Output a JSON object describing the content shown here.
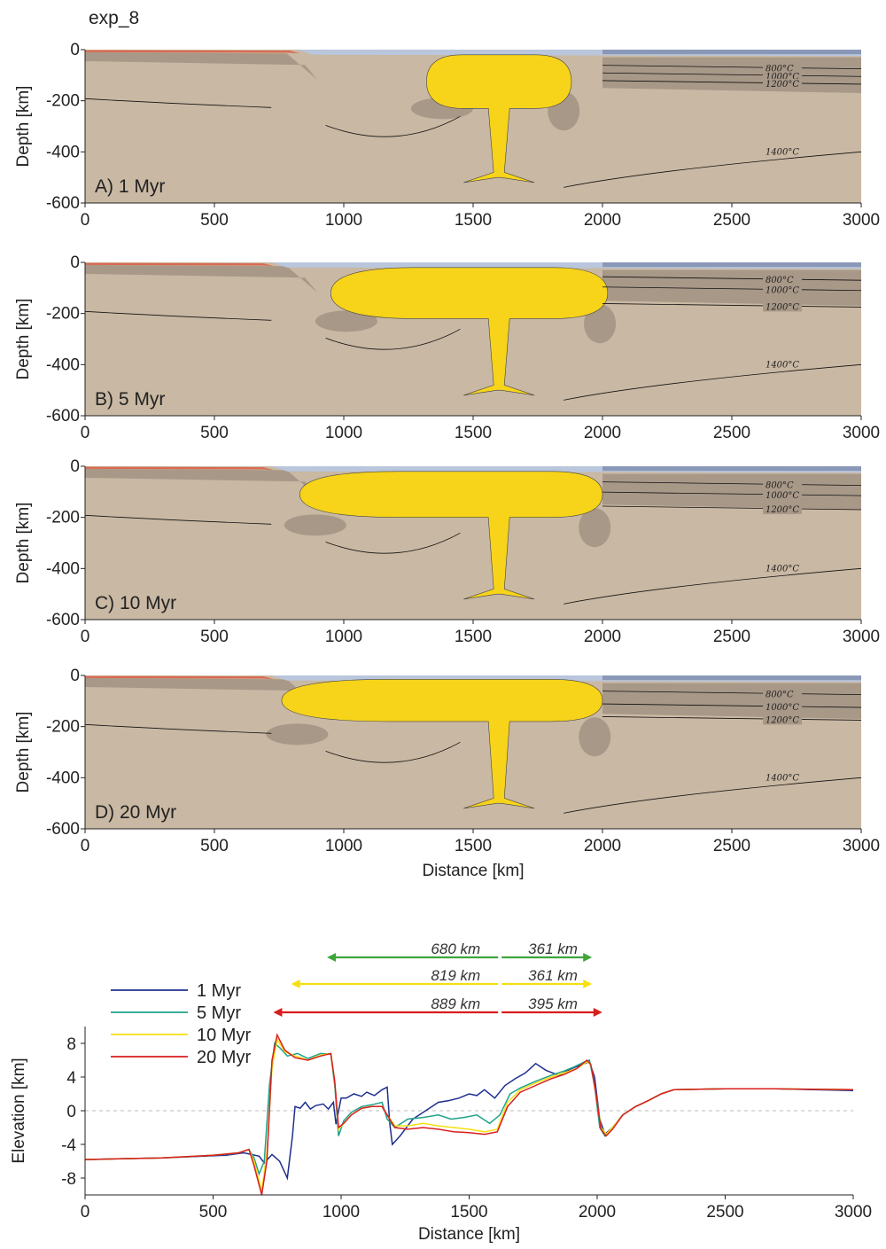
{
  "figure_title": "exp_8",
  "colors": {
    "mantle": "#c9b8a3",
    "lithosphere": "#a89888",
    "crust_light": "#b9c6dc",
    "crust_dark": "#8a98b8",
    "red_layer": "#d96a50",
    "plume": "#f7d31a",
    "isotherm": "#111111",
    "zero_line": "#bbbbbb"
  },
  "chart_data": [
    {
      "type": "area",
      "title": "",
      "panel_label": "A) 1 Myr",
      "xlabel": "",
      "ylabel": "Depth [km]",
      "xlim": [
        0,
        3000
      ],
      "ylim": [
        -600,
        0
      ],
      "xticks": [
        0,
        500,
        1000,
        1500,
        2000,
        2500,
        3000
      ],
      "yticks": [
        0,
        -200,
        -400,
        -600
      ],
      "plume_extent_km": [
        1320,
        1880
      ],
      "plume_top_depth_km": -20,
      "plume_head_depth_km": -230,
      "isotherms": [
        {
          "label": "800°C",
          "depth_km": -75
        },
        {
          "label": "1000°C",
          "depth_km": -105
        },
        {
          "label": "1200°C",
          "depth_km": -135
        },
        {
          "label": "1400°C",
          "depth_km": -400
        }
      ]
    },
    {
      "type": "area",
      "title": "",
      "panel_label": "B) 5 Myr",
      "xlabel": "",
      "ylabel": "Depth [km]",
      "xlim": [
        0,
        3000
      ],
      "ylim": [
        -600,
        0
      ],
      "xticks": [
        0,
        500,
        1000,
        1500,
        2000,
        2500,
        3000
      ],
      "yticks": [
        0,
        -200,
        -400,
        -600
      ],
      "plume_extent_km": [
        950,
        2020
      ],
      "plume_top_depth_km": -20,
      "plume_head_depth_km": -220,
      "isotherms": [
        {
          "label": "800°C",
          "depth_km": -70
        },
        {
          "label": "1000°C",
          "depth_km": -110
        },
        {
          "label": "1200°C",
          "depth_km": -175
        },
        {
          "label": "1400°C",
          "depth_km": -400
        }
      ]
    },
    {
      "type": "area",
      "title": "",
      "panel_label": "C) 10 Myr",
      "xlabel": "",
      "ylabel": "Depth [km]",
      "xlim": [
        0,
        3000
      ],
      "ylim": [
        -600,
        0
      ],
      "xticks": [
        0,
        500,
        1000,
        1500,
        2000,
        2500,
        3000
      ],
      "yticks": [
        0,
        -200,
        -400,
        -600
      ],
      "plume_extent_km": [
        830,
        2000
      ],
      "plume_top_depth_km": -20,
      "plume_head_depth_km": -200,
      "isotherms": [
        {
          "label": "800°C",
          "depth_km": -75
        },
        {
          "label": "1000°C",
          "depth_km": -115
        },
        {
          "label": "1200°C",
          "depth_km": -170
        },
        {
          "label": "1400°C",
          "depth_km": -400
        }
      ]
    },
    {
      "type": "area",
      "title": "",
      "panel_label": "D) 20 Myr",
      "xlabel": "Distance [km]",
      "ylabel": "Depth [km]",
      "xlim": [
        0,
        3000
      ],
      "ylim": [
        -600,
        0
      ],
      "xticks": [
        0,
        500,
        1000,
        1500,
        2000,
        2500,
        3000
      ],
      "yticks": [
        0,
        -200,
        -400,
        -600
      ],
      "plume_extent_km": [
        760,
        2000
      ],
      "plume_top_depth_km": -15,
      "plume_head_depth_km": -180,
      "isotherms": [
        {
          "label": "800°C",
          "depth_km": -75
        },
        {
          "label": "1000°C",
          "depth_km": -125
        },
        {
          "label": "1200°C",
          "depth_km": -175
        },
        {
          "label": "1400°C",
          "depth_km": -400
        }
      ]
    },
    {
      "type": "line",
      "title": "",
      "xlabel": "Distance [km]",
      "ylabel": "Elevation [km]",
      "xlim": [
        0,
        3000
      ],
      "ylim": [
        -10,
        10
      ],
      "xticks": [
        0,
        500,
        1000,
        1500,
        2000,
        2500,
        3000
      ],
      "yticks": [
        8,
        4,
        0,
        -4,
        -8
      ],
      "legend_position": "top-left",
      "series": [
        {
          "name": "1 Myr",
          "color": "#1f2f8f",
          "points": [
            [
              0,
              -5.8
            ],
            [
              300,
              -5.6
            ],
            [
              550,
              -5.3
            ],
            [
              620,
              -5.0
            ],
            [
              680,
              -5.4
            ],
            [
              700,
              -6.2
            ],
            [
              730,
              -5.2
            ],
            [
              760,
              -6.0
            ],
            [
              790,
              -8.0
            ],
            [
              810,
              -3.0
            ],
            [
              820,
              0.5
            ],
            [
              840,
              0.3
            ],
            [
              860,
              1.0
            ],
            [
              880,
              0.2
            ],
            [
              900,
              0.6
            ],
            [
              930,
              0.8
            ],
            [
              950,
              0.2
            ],
            [
              970,
              1.0
            ],
            [
              980,
              -1.6
            ],
            [
              1000,
              1.5
            ],
            [
              1020,
              1.5
            ],
            [
              1050,
              2.0
            ],
            [
              1080,
              1.7
            ],
            [
              1100,
              2.2
            ],
            [
              1130,
              1.8
            ],
            [
              1160,
              2.5
            ],
            [
              1180,
              2.8
            ],
            [
              1190,
              -1.5
            ],
            [
              1200,
              -4.0
            ],
            [
              1230,
              -3.0
            ],
            [
              1280,
              -1.0
            ],
            [
              1330,
              0.0
            ],
            [
              1380,
              1.0
            ],
            [
              1420,
              1.2
            ],
            [
              1460,
              1.5
            ],
            [
              1500,
              2.0
            ],
            [
              1530,
              1.8
            ],
            [
              1560,
              2.5
            ],
            [
              1600,
              1.5
            ],
            [
              1640,
              3.0
            ],
            [
              1680,
              3.8
            ],
            [
              1720,
              4.5
            ],
            [
              1760,
              5.6
            ],
            [
              1800,
              4.8
            ],
            [
              1850,
              4.2
            ],
            [
              1900,
              5.0
            ],
            [
              1940,
              5.5
            ],
            [
              1970,
              5.8
            ],
            [
              1990,
              4.0
            ],
            [
              2010,
              -1.0
            ],
            [
              2030,
              -2.8
            ],
            [
              2060,
              -2.0
            ],
            [
              2100,
              -0.5
            ],
            [
              2150,
              0.5
            ],
            [
              2200,
              1.2
            ],
            [
              2250,
              2.0
            ],
            [
              2300,
              2.5
            ],
            [
              2500,
              2.6
            ],
            [
              2700,
              2.6
            ],
            [
              3000,
              2.4
            ]
          ]
        },
        {
          "name": "5 Myr",
          "color": "#1fa38a",
          "points": [
            [
              0,
              -5.8
            ],
            [
              300,
              -5.6
            ],
            [
              500,
              -5.3
            ],
            [
              600,
              -5.0
            ],
            [
              640,
              -4.6
            ],
            [
              660,
              -5.6
            ],
            [
              680,
              -7.5
            ],
            [
              700,
              -6.0
            ],
            [
              720,
              3.0
            ],
            [
              740,
              8.0
            ],
            [
              760,
              7.5
            ],
            [
              790,
              6.5
            ],
            [
              830,
              6.8
            ],
            [
              870,
              6.2
            ],
            [
              920,
              6.8
            ],
            [
              960,
              6.7
            ],
            [
              975,
              3.0
            ],
            [
              990,
              -3.0
            ],
            [
              1010,
              -1.2
            ],
            [
              1040,
              -0.2
            ],
            [
              1080,
              0.5
            ],
            [
              1120,
              0.7
            ],
            [
              1160,
              1.0
            ],
            [
              1180,
              -1.0
            ],
            [
              1210,
              -2.0
            ],
            [
              1260,
              -1.0
            ],
            [
              1320,
              -0.8
            ],
            [
              1380,
              -0.5
            ],
            [
              1430,
              -1.0
            ],
            [
              1480,
              -0.8
            ],
            [
              1530,
              -0.5
            ],
            [
              1580,
              -1.5
            ],
            [
              1620,
              -0.5
            ],
            [
              1660,
              2.0
            ],
            [
              1700,
              2.7
            ],
            [
              1760,
              3.5
            ],
            [
              1820,
              4.2
            ],
            [
              1870,
              4.7
            ],
            [
              1910,
              5.2
            ],
            [
              1950,
              5.8
            ],
            [
              1970,
              6.0
            ],
            [
              1990,
              3.0
            ],
            [
              2010,
              -2.0
            ],
            [
              2030,
              -3.0
            ],
            [
              2060,
              -2.0
            ],
            [
              2100,
              -0.5
            ],
            [
              2150,
              0.5
            ],
            [
              2200,
              1.2
            ],
            [
              2250,
              2.0
            ],
            [
              2300,
              2.5
            ],
            [
              2500,
              2.6
            ],
            [
              2700,
              2.6
            ],
            [
              3000,
              2.5
            ]
          ]
        },
        {
          "name": "10 Myr",
          "color": "#f5e011",
          "points": [
            [
              0,
              -5.8
            ],
            [
              300,
              -5.6
            ],
            [
              500,
              -5.3
            ],
            [
              600,
              -5.0
            ],
            [
              640,
              -4.6
            ],
            [
              660,
              -6.0
            ],
            [
              690,
              -9.5
            ],
            [
              710,
              -5.0
            ],
            [
              730,
              5.0
            ],
            [
              750,
              8.5
            ],
            [
              780,
              7.0
            ],
            [
              820,
              6.5
            ],
            [
              870,
              6.0
            ],
            [
              920,
              6.6
            ],
            [
              960,
              6.8
            ],
            [
              975,
              3.5
            ],
            [
              990,
              -2.2
            ],
            [
              1010,
              -1.5
            ],
            [
              1040,
              -0.5
            ],
            [
              1080,
              0.3
            ],
            [
              1120,
              0.5
            ],
            [
              1160,
              0.5
            ],
            [
              1180,
              -0.5
            ],
            [
              1210,
              -1.8
            ],
            [
              1260,
              -1.8
            ],
            [
              1320,
              -1.5
            ],
            [
              1380,
              -1.8
            ],
            [
              1440,
              -2.0
            ],
            [
              1500,
              -2.2
            ],
            [
              1560,
              -2.5
            ],
            [
              1610,
              -2.2
            ],
            [
              1650,
              1.0
            ],
            [
              1700,
              2.5
            ],
            [
              1760,
              3.3
            ],
            [
              1820,
              4.0
            ],
            [
              1870,
              4.5
            ],
            [
              1920,
              5.0
            ],
            [
              1960,
              5.8
            ],
            [
              1975,
              5.5
            ],
            [
              1995,
              2.0
            ],
            [
              2015,
              -2.0
            ],
            [
              2035,
              -2.8
            ],
            [
              2060,
              -2.0
            ],
            [
              2100,
              -0.5
            ],
            [
              2150,
              0.5
            ],
            [
              2200,
              1.2
            ],
            [
              2250,
              2.0
            ],
            [
              2300,
              2.5
            ],
            [
              2500,
              2.6
            ],
            [
              2700,
              2.6
            ],
            [
              3000,
              2.5
            ]
          ]
        },
        {
          "name": "20 Myr",
          "color": "#d81e1e",
          "points": [
            [
              0,
              -5.8
            ],
            [
              300,
              -5.6
            ],
            [
              500,
              -5.3
            ],
            [
              600,
              -5.0
            ],
            [
              640,
              -4.6
            ],
            [
              660,
              -6.5
            ],
            [
              690,
              -10.0
            ],
            [
              710,
              -6.0
            ],
            [
              730,
              6.0
            ],
            [
              750,
              9.0
            ],
            [
              780,
              7.2
            ],
            [
              820,
              6.3
            ],
            [
              870,
              6.0
            ],
            [
              920,
              6.5
            ],
            [
              960,
              6.8
            ],
            [
              975,
              3.5
            ],
            [
              990,
              -2.0
            ],
            [
              1010,
              -1.5
            ],
            [
              1040,
              -0.5
            ],
            [
              1080,
              0.3
            ],
            [
              1120,
              0.5
            ],
            [
              1160,
              0.5
            ],
            [
              1180,
              -0.5
            ],
            [
              1210,
              -2.0
            ],
            [
              1260,
              -2.2
            ],
            [
              1320,
              -2.0
            ],
            [
              1380,
              -2.2
            ],
            [
              1440,
              -2.5
            ],
            [
              1500,
              -2.6
            ],
            [
              1560,
              -2.8
            ],
            [
              1610,
              -2.5
            ],
            [
              1650,
              0.5
            ],
            [
              1700,
              2.2
            ],
            [
              1760,
              3.0
            ],
            [
              1820,
              3.8
            ],
            [
              1870,
              4.3
            ],
            [
              1920,
              5.0
            ],
            [
              1960,
              6.0
            ],
            [
              1975,
              5.5
            ],
            [
              1995,
              2.0
            ],
            [
              2015,
              -2.2
            ],
            [
              2035,
              -3.0
            ],
            [
              2060,
              -2.2
            ],
            [
              2100,
              -0.5
            ],
            [
              2150,
              0.5
            ],
            [
              2200,
              1.2
            ],
            [
              2250,
              2.0
            ],
            [
              2300,
              2.5
            ],
            [
              2500,
              2.6
            ],
            [
              2700,
              2.6
            ],
            [
              3000,
              2.5
            ]
          ]
        }
      ],
      "distance_arrows": [
        {
          "color": "#3fa53a",
          "x_start": 945,
          "x_split": 1620,
          "x_end": 1980,
          "left_label": "680 km",
          "right_label": "361 km"
        },
        {
          "color": "#f5e011",
          "x_start": 805,
          "x_split": 1620,
          "x_end": 1980,
          "left_label": "819 km",
          "right_label": "361 km"
        },
        {
          "color": "#d81e1e",
          "x_start": 735,
          "x_split": 1620,
          "x_end": 2020,
          "left_label": "889 km",
          "right_label": "395 km"
        }
      ]
    }
  ]
}
